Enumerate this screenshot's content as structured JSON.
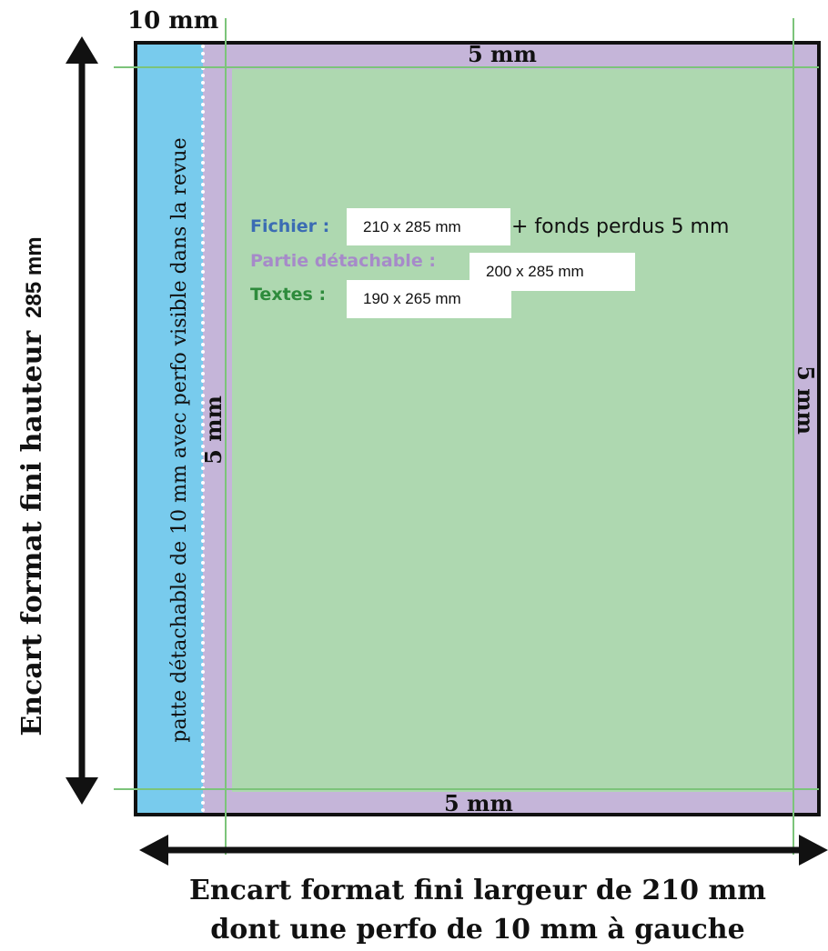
{
  "colors": {
    "tab": "#78cbed",
    "bleed": "#c5b5d9",
    "safe": "#aed8b0",
    "guide": "#7cc47a",
    "fichier": "#3b6cb3",
    "partie": "#a68ac9",
    "textes": "#2e8b3c"
  },
  "labels": {
    "tab_width": "10 mm",
    "margin_top": "5 mm",
    "margin_bottom": "5 mm",
    "margin_right": "5 mm",
    "margin_left": "5 mm",
    "tab_text": "patte détachable de 10 mm avec perfo visible dans la revue",
    "height_label": "Encart format fini hauteur",
    "height_value": "285 mm"
  },
  "info": {
    "fichier_label": "Fichier :",
    "fichier_value": "210 x 285 mm",
    "fonds_text": "+ fonds perdus 5 mm",
    "partie_label": "Partie détachable :",
    "partie_value": "200 x 285 mm",
    "textes_label": "Textes :",
    "textes_value": "190 x 265 mm"
  },
  "caption": {
    "line1": "Encart format fini largeur de 210 mm",
    "line2": "dont une perfo de 10 mm à gauche"
  },
  "icons": {
    "vertical_arrow": "double-arrow-vertical-icon",
    "horizontal_arrow": "double-arrow-horizontal-icon"
  }
}
